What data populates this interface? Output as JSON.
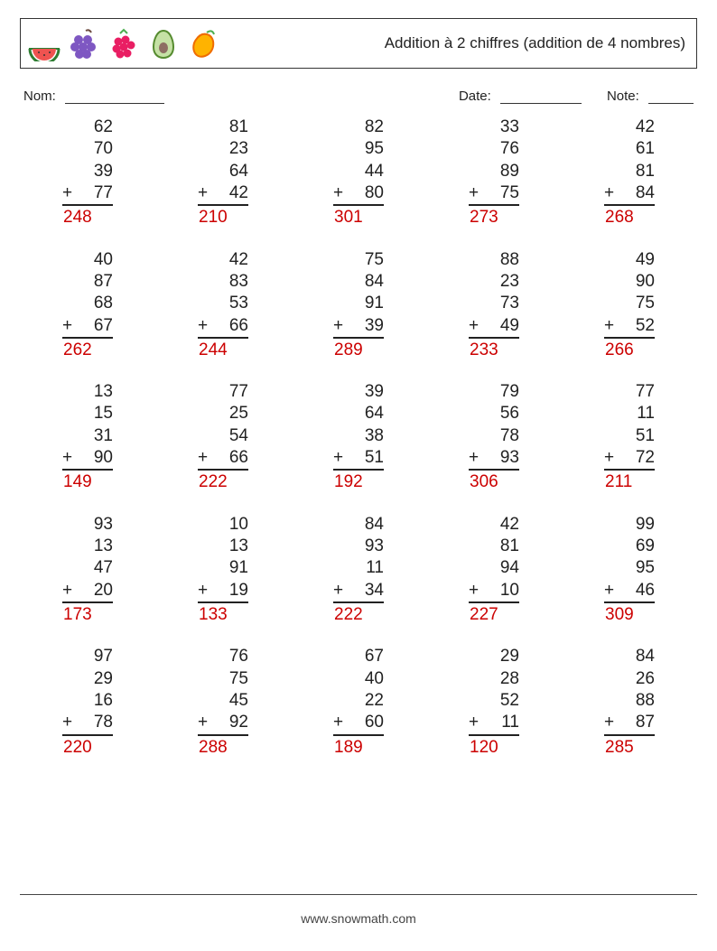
{
  "title": "Addition à 2 chiffres (addition de 4 nombres)",
  "labels": {
    "name": "Nom:",
    "date": "Date:",
    "note": "Note:"
  },
  "footer": "www.snowmath.com",
  "fruits": [
    "watermelon",
    "grapes",
    "raspberry",
    "avocado",
    "mango"
  ],
  "op": "+",
  "answer_color": "#cc0000",
  "text_color": "#222222",
  "rows": 5,
  "cols": 5,
  "problems": [
    {
      "n": [
        62,
        70,
        39,
        77
      ],
      "a": 248
    },
    {
      "n": [
        81,
        23,
        64,
        42
      ],
      "a": 210
    },
    {
      "n": [
        82,
        95,
        44,
        80
      ],
      "a": 301
    },
    {
      "n": [
        33,
        76,
        89,
        75
      ],
      "a": 273
    },
    {
      "n": [
        42,
        61,
        81,
        84
      ],
      "a": 268
    },
    {
      "n": [
        40,
        87,
        68,
        67
      ],
      "a": 262
    },
    {
      "n": [
        42,
        83,
        53,
        66
      ],
      "a": 244
    },
    {
      "n": [
        75,
        84,
        91,
        39
      ],
      "a": 289
    },
    {
      "n": [
        88,
        23,
        73,
        49
      ],
      "a": 233
    },
    {
      "n": [
        49,
        90,
        75,
        52
      ],
      "a": 266
    },
    {
      "n": [
        13,
        15,
        31,
        90
      ],
      "a": 149
    },
    {
      "n": [
        77,
        25,
        54,
        66
      ],
      "a": 222
    },
    {
      "n": [
        39,
        64,
        38,
        51
      ],
      "a": 192
    },
    {
      "n": [
        79,
        56,
        78,
        93
      ],
      "a": 306
    },
    {
      "n": [
        77,
        11,
        51,
        72
      ],
      "a": 211
    },
    {
      "n": [
        93,
        13,
        47,
        20
      ],
      "a": 173
    },
    {
      "n": [
        10,
        13,
        91,
        19
      ],
      "a": 133
    },
    {
      "n": [
        84,
        93,
        11,
        34
      ],
      "a": 222
    },
    {
      "n": [
        42,
        81,
        94,
        10
      ],
      "a": 227
    },
    {
      "n": [
        99,
        69,
        95,
        46
      ],
      "a": 309
    },
    {
      "n": [
        97,
        29,
        16,
        78
      ],
      "a": 220
    },
    {
      "n": [
        76,
        75,
        45,
        92
      ],
      "a": 288
    },
    {
      "n": [
        67,
        40,
        22,
        60
      ],
      "a": 189
    },
    {
      "n": [
        29,
        28,
        52,
        11
      ],
      "a": 120
    },
    {
      "n": [
        84,
        26,
        88,
        87
      ],
      "a": 285
    }
  ]
}
